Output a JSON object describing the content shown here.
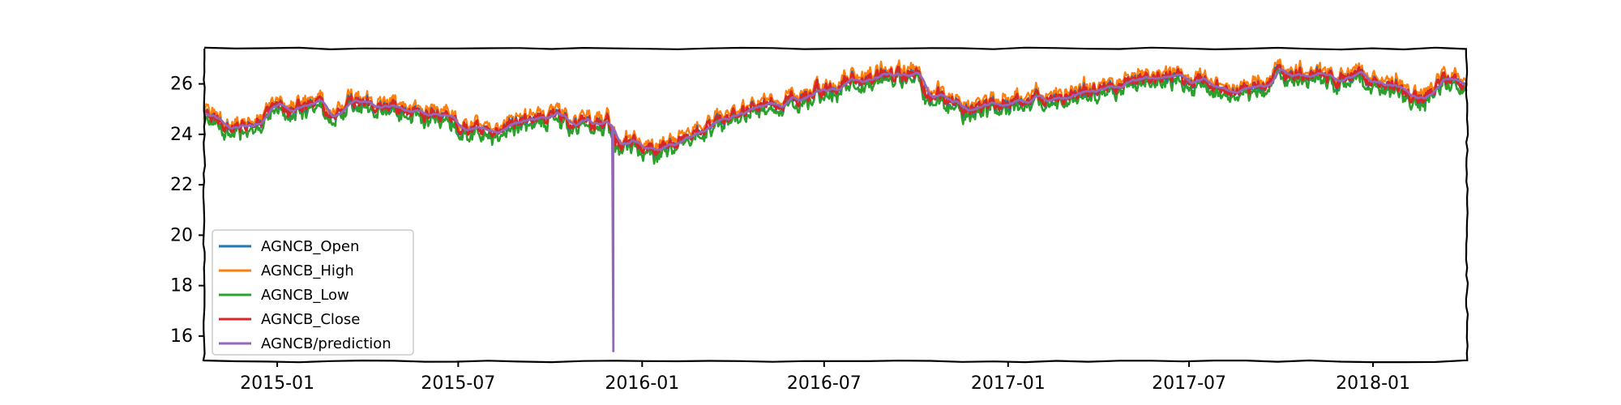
{
  "chart_data": {
    "type": "line",
    "title": "",
    "xlabel": "",
    "ylabel": "",
    "x_range": [
      "2014-10-20",
      "2018-04-05"
    ],
    "ylim": [
      15,
      27.4
    ],
    "x_tick_labels": [
      "2015-01",
      "2015-07",
      "2016-01",
      "2016-07",
      "2017-01",
      "2017-07",
      "2018-01"
    ],
    "y_tick_labels": [
      "16",
      "18",
      "20",
      "22",
      "24",
      "26"
    ],
    "y_ticks": [
      16,
      18,
      20,
      22,
      24,
      26
    ],
    "grid": false,
    "legend_position": "lower-left",
    "style": "xkcd",
    "series": [
      {
        "name": "AGNCB_Open",
        "color": "#1f77b4"
      },
      {
        "name": "AGNCB_High",
        "color": "#ff7f0e"
      },
      {
        "name": "AGNCB_Low",
        "color": "#2ca02c"
      },
      {
        "name": "AGNCB_Close",
        "color": "#d62728"
      },
      {
        "name": "AGNCB/prediction",
        "color": "#9467bd"
      }
    ],
    "price_path": [
      [
        "2014-10-20",
        24.8
      ],
      [
        "2014-11-01",
        24.5
      ],
      [
        "2014-11-20",
        24.2
      ],
      [
        "2014-12-10",
        24.5
      ],
      [
        "2015-01-01",
        24.9
      ],
      [
        "2015-02-01",
        25.1
      ],
      [
        "2015-03-01",
        25.1
      ],
      [
        "2015-04-15",
        25.2
      ],
      [
        "2015-05-15",
        25.0
      ],
      [
        "2015-06-15",
        24.6
      ],
      [
        "2015-07-15",
        24.2
      ],
      [
        "2015-08-15",
        24.3
      ],
      [
        "2015-09-15",
        24.6
      ],
      [
        "2015-10-15",
        24.6
      ],
      [
        "2015-11-10",
        24.4
      ],
      [
        "2015-11-28",
        24.5
      ],
      [
        "2015-12-05",
        23.6
      ],
      [
        "2015-12-20",
        23.7
      ],
      [
        "2016-01-10",
        23.5
      ],
      [
        "2016-02-01",
        23.6
      ],
      [
        "2016-02-20",
        24.0
      ],
      [
        "2016-03-15",
        24.5
      ],
      [
        "2016-04-15",
        24.9
      ],
      [
        "2016-05-15",
        25.3
      ],
      [
        "2016-06-15",
        25.6
      ],
      [
        "2016-07-15",
        26.0
      ],
      [
        "2016-08-15",
        26.3
      ],
      [
        "2016-09-15",
        26.3
      ],
      [
        "2016-10-01",
        26.4
      ],
      [
        "2016-10-10",
        25.6
      ],
      [
        "2016-10-25",
        25.6
      ],
      [
        "2016-11-15",
        25.1
      ],
      [
        "2016-12-15",
        25.1
      ],
      [
        "2017-01-15",
        25.3
      ],
      [
        "2017-02-15",
        25.5
      ],
      [
        "2017-03-15",
        25.6
      ],
      [
        "2017-04-15",
        25.9
      ],
      [
        "2017-05-15",
        26.2
      ],
      [
        "2017-06-15",
        26.2
      ],
      [
        "2017-07-01",
        26.1
      ],
      [
        "2017-07-20",
        26.0
      ],
      [
        "2017-08-15",
        25.8
      ],
      [
        "2017-09-15",
        26.1
      ],
      [
        "2017-10-15",
        26.4
      ],
      [
        "2017-11-15",
        26.2
      ],
      [
        "2017-12-15",
        26.3
      ],
      [
        "2018-01-10",
        26.1
      ],
      [
        "2018-02-01",
        25.6
      ],
      [
        "2018-02-20",
        25.5
      ],
      [
        "2018-03-10",
        26.1
      ],
      [
        "2018-03-25",
        26.2
      ],
      [
        "2018-04-05",
        25.8
      ]
    ],
    "prediction_spike": {
      "date": "2015-12-02",
      "min": 15.4
    }
  }
}
